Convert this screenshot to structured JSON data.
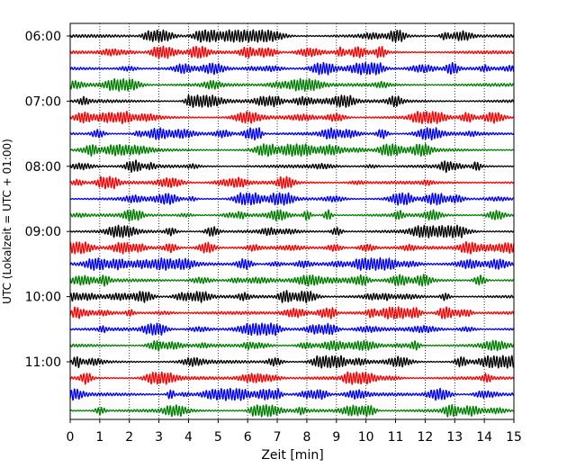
{
  "chart_data": {
    "type": "line",
    "title": "",
    "xlabel": "Zeit  [min]",
    "ylabel": "UTC (Lokalzeit = UTC + 01:00)",
    "xlim": [
      0,
      15
    ],
    "x_ticks": [
      "0",
      "1",
      "2",
      "3",
      "4",
      "5",
      "6",
      "7",
      "8",
      "9",
      "10",
      "11",
      "12",
      "13",
      "14",
      "15"
    ],
    "y_ticks": [
      "06:00",
      "07:00",
      "08:00",
      "09:00",
      "10:00",
      "11:00"
    ],
    "grid": "vertical-dotted",
    "trace_interval_minutes": 15,
    "trace_start": "06:00",
    "trace_count": 24,
    "trace_colors": [
      "#000000",
      "#ff0000",
      "#0000ff",
      "#007f00"
    ]
  }
}
